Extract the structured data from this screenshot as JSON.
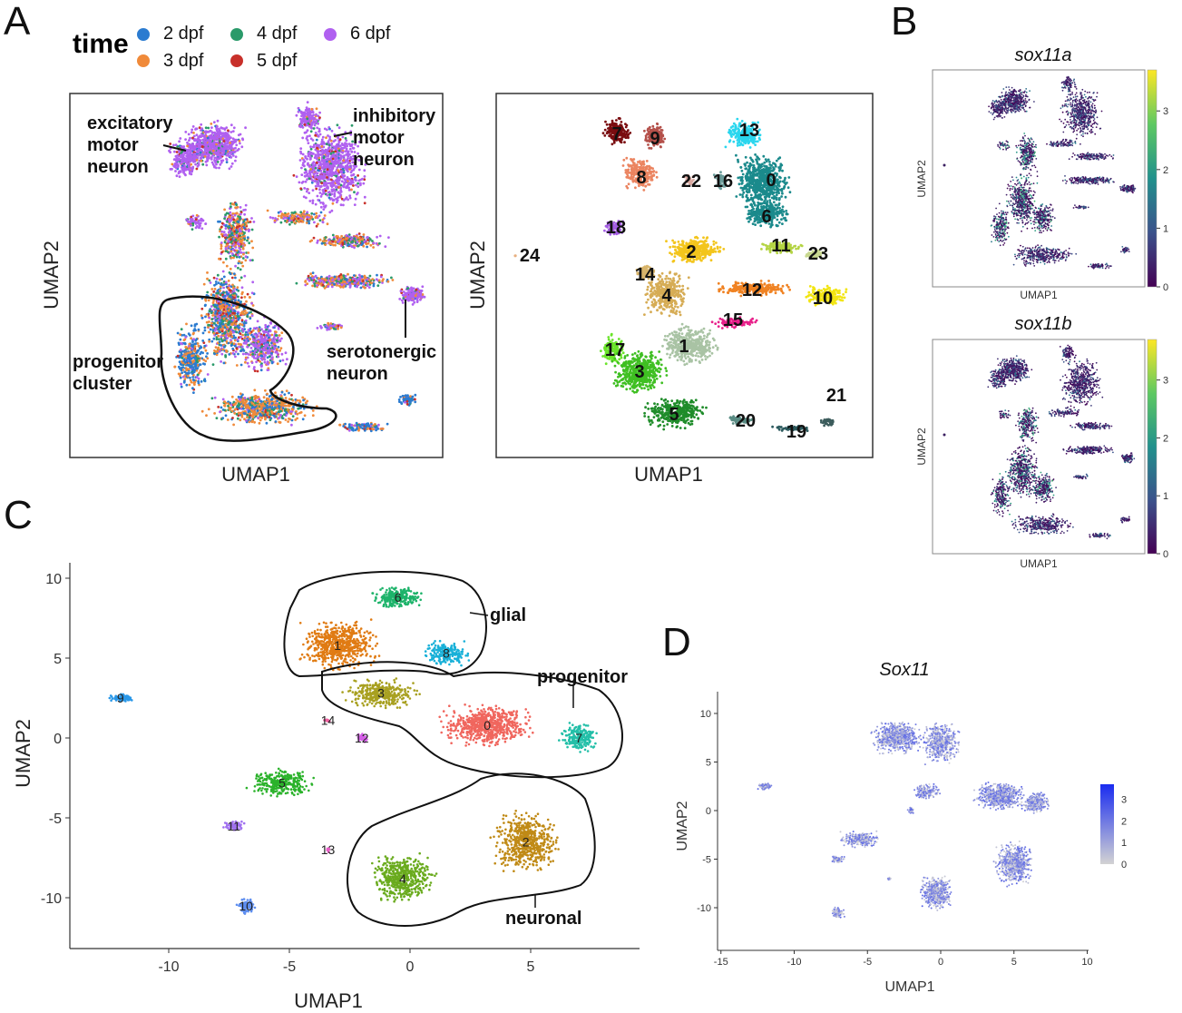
{
  "panel_labels": {
    "a": "A",
    "b": "B",
    "c": "C",
    "d": "D"
  },
  "chart_data": [
    {
      "id": "A-time",
      "type": "scatter",
      "xlabel": "UMAP1",
      "ylabel": "UMAP2",
      "legend": {
        "title": "time",
        "placement": "top-left",
        "entries": [
          {
            "label": "2 dpf",
            "color": "#2b7bd0"
          },
          {
            "label": "3 dpf",
            "color": "#f08a3a"
          },
          {
            "label": "4 dpf",
            "color": "#2a9a6a"
          },
          {
            "label": "5 dpf",
            "color": "#c8302a"
          },
          {
            "label": "6 dpf",
            "color": "#b060f0"
          }
        ]
      },
      "annotations": {
        "excitatory": [
          "excitatory",
          "motor",
          "neuron"
        ],
        "inhibitory": [
          "inhibitory",
          "motor",
          "neuron"
        ],
        "serotonergic": [
          "serotonergic",
          "neuron"
        ],
        "progenitor": [
          "progenitor",
          "cluster"
        ]
      }
    },
    {
      "id": "A-clusters",
      "type": "scatter",
      "xlabel": "UMAP1",
      "ylabel": "UMAP2",
      "clusters": [
        {
          "label": "0",
          "color": "#1b8a8c"
        },
        {
          "label": "1",
          "color": "#a9c3a4"
        },
        {
          "label": "2",
          "color": "#f3c51c"
        },
        {
          "label": "3",
          "color": "#3fbf22"
        },
        {
          "label": "4",
          "color": "#d6ac55"
        },
        {
          "label": "5",
          "color": "#1f8c2a"
        },
        {
          "label": "6",
          "color": "#1b8a8c"
        },
        {
          "label": "7",
          "color": "#7a0d10"
        },
        {
          "label": "8",
          "color": "#eb8460"
        },
        {
          "label": "9",
          "color": "#b4504a"
        },
        {
          "label": "10",
          "color": "#f2e512"
        },
        {
          "label": "11",
          "color": "#b4d444"
        },
        {
          "label": "12",
          "color": "#f08222"
        },
        {
          "label": "13",
          "color": "#2ad6ee"
        },
        {
          "label": "14",
          "color": "#d8b46a"
        },
        {
          "label": "15",
          "color": "#e8208a"
        },
        {
          "label": "16",
          "color": "#6a9c9a"
        },
        {
          "label": "17",
          "color": "#6ae42a"
        },
        {
          "label": "18",
          "color": "#a45ee2"
        },
        {
          "label": "19",
          "color": "#2c5a5e"
        },
        {
          "label": "20",
          "color": "#5a8c84"
        },
        {
          "label": "21",
          "color": "#3c5c5c"
        },
        {
          "label": "22",
          "color": "#d8a8a0"
        },
        {
          "label": "23",
          "color": "#c8d890"
        },
        {
          "label": "24",
          "color": "#e8b080"
        }
      ]
    },
    {
      "id": "B-sox11a",
      "type": "scatter",
      "title": "sox11a",
      "xlabel": "UMAP1",
      "ylabel": "UMAP2",
      "colorbar": {
        "ticks": [
          "0",
          "1",
          "2",
          "3"
        ],
        "range": [
          0,
          3.7
        ],
        "colormap": "viridis"
      }
    },
    {
      "id": "B-sox11b",
      "type": "scatter",
      "title": "sox11b",
      "xlabel": "UMAP1",
      "ylabel": "UMAP2",
      "colorbar": {
        "ticks": [
          "0",
          "1",
          "2",
          "3"
        ],
        "range": [
          0,
          3.7
        ],
        "colormap": "viridis"
      }
    },
    {
      "id": "C",
      "type": "scatter",
      "xlabel": "UMAP1",
      "ylabel": "UMAP2",
      "xlim": [
        -14,
        9.5
      ],
      "ylim": [
        -13,
        11
      ],
      "xticks": [
        "-10",
        "-5",
        "0",
        "5"
      ],
      "yticks": [
        "10",
        "5",
        "0",
        "-5",
        "-10"
      ],
      "grid": false,
      "clusters": [
        {
          "label": "0",
          "color": "#f0665e",
          "x": 3.2,
          "y": 0.8
        },
        {
          "label": "1",
          "color": "#e07b13",
          "x": -3,
          "y": 5.8
        },
        {
          "label": "2",
          "color": "#c08a16",
          "x": 4.8,
          "y": -6.5
        },
        {
          "label": "3",
          "color": "#a8a020",
          "x": -1.2,
          "y": 2.8
        },
        {
          "label": "4",
          "color": "#6aab1e",
          "x": -0.3,
          "y": -8.8
        },
        {
          "label": "5",
          "color": "#2bb22b",
          "x": -5.3,
          "y": -2.8
        },
        {
          "label": "6",
          "color": "#1db36a",
          "x": -0.5,
          "y": 8.8
        },
        {
          "label": "7",
          "color": "#23bfa8",
          "x": 7,
          "y": 0
        },
        {
          "label": "8",
          "color": "#18b0d8",
          "x": 1.5,
          "y": 5.3
        },
        {
          "label": "9",
          "color": "#2a98e8",
          "x": -12,
          "y": 2.5
        },
        {
          "label": "10",
          "color": "#5e8ef0",
          "x": -6.8,
          "y": -10.5
        },
        {
          "label": "11",
          "color": "#a070f0",
          "x": -7.3,
          "y": -5.5
        },
        {
          "label": "12",
          "color": "#d55ee8",
          "x": -2,
          "y": 0
        },
        {
          "label": "13",
          "color": "#e85ec6",
          "x": -3.4,
          "y": -7
        },
        {
          "label": "14",
          "color": "#f060a0",
          "x": -3.4,
          "y": 1.1
        }
      ],
      "annotations": {
        "glial": "glial",
        "progenitor": "progenitor",
        "neuronal": "neuronal"
      }
    },
    {
      "id": "D",
      "type": "scatter",
      "title": "Sox11",
      "xlabel": "UMAP1",
      "ylabel": "UMAP2",
      "xlim": [
        -15,
        10
      ],
      "ylim": [
        -14,
        12
      ],
      "xticks": [
        "-15",
        "-10",
        "-5",
        "0",
        "5",
        "10"
      ],
      "yticks": [
        "10",
        "5",
        "0",
        "-5",
        "-10"
      ],
      "colorbar": {
        "ticks": [
          "0",
          "1",
          "2",
          "3"
        ],
        "range": [
          0,
          3.7
        ],
        "low": "#d3d3d3",
        "high": "#1a2cf0"
      },
      "grid": false
    }
  ]
}
